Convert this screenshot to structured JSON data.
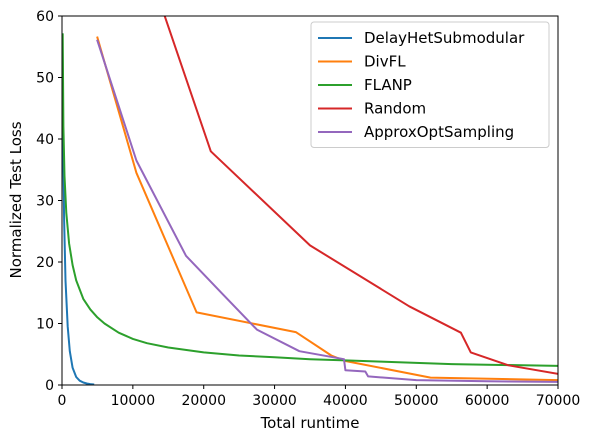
{
  "chart_data": {
    "type": "line",
    "xlabel": "Total runtime",
    "ylabel": "Normalized Test Loss",
    "xlim": [
      0,
      70000
    ],
    "ylim": [
      0,
      60
    ],
    "xticks": [
      0,
      10000,
      20000,
      30000,
      40000,
      50000,
      60000,
      70000
    ],
    "xtick_labels": [
      "0",
      "10000",
      "20000",
      "30000",
      "40000",
      "50000",
      "60000",
      "70000"
    ],
    "yticks": [
      0,
      10,
      20,
      30,
      40,
      50,
      60
    ],
    "ytick_labels": [
      "0",
      "10",
      "20",
      "30",
      "40",
      "50",
      "60"
    ],
    "grid": false,
    "legend_position": "top-right",
    "series": [
      {
        "name": "DelayHetSubmodular",
        "color": "#1f77b4",
        "points": [
          [
            50,
            57
          ],
          [
            150,
            40
          ],
          [
            300,
            27
          ],
          [
            500,
            17
          ],
          [
            800,
            9.5
          ],
          [
            1100,
            5.5
          ],
          [
            1500,
            2.8
          ],
          [
            2000,
            1.3
          ],
          [
            2500,
            0.7
          ],
          [
            3000,
            0.4
          ],
          [
            3500,
            0.25
          ],
          [
            4000,
            0.15
          ],
          [
            4400,
            0.1
          ]
        ]
      },
      {
        "name": "DivFL",
        "color": "#ff7f0e",
        "points": [
          [
            5000,
            56.5
          ],
          [
            10500,
            34.5
          ],
          [
            19000,
            11.8
          ],
          [
            33000,
            8.6
          ],
          [
            38000,
            4.8
          ],
          [
            40000,
            3.9
          ],
          [
            52000,
            1.2
          ],
          [
            70000,
            0.8
          ]
        ]
      },
      {
        "name": "FLANP",
        "color": "#2ca02c",
        "points": [
          [
            100,
            57
          ],
          [
            200,
            42
          ],
          [
            350,
            34
          ],
          [
            600,
            28
          ],
          [
            1000,
            23
          ],
          [
            1500,
            19.5
          ],
          [
            2000,
            17
          ],
          [
            3000,
            14
          ],
          [
            4000,
            12.3
          ],
          [
            5000,
            11
          ],
          [
            6000,
            10
          ],
          [
            8000,
            8.5
          ],
          [
            10000,
            7.5
          ],
          [
            12000,
            6.8
          ],
          [
            15000,
            6.1
          ],
          [
            20000,
            5.3
          ],
          [
            25000,
            4.8
          ],
          [
            30000,
            4.5
          ],
          [
            35000,
            4.2
          ],
          [
            40000,
            4.0
          ],
          [
            45000,
            3.8
          ],
          [
            50000,
            3.6
          ],
          [
            55000,
            3.4
          ],
          [
            60000,
            3.3
          ],
          [
            65000,
            3.2
          ],
          [
            70000,
            3.1
          ]
        ]
      },
      {
        "name": "Random",
        "color": "#d62728",
        "points": [
          [
            14500,
            60
          ],
          [
            21000,
            38
          ],
          [
            35000,
            22.7
          ],
          [
            49000,
            12.8
          ],
          [
            56300,
            8.5
          ],
          [
            57700,
            5.3
          ],
          [
            63000,
            3.2
          ],
          [
            70000,
            1.8
          ]
        ]
      },
      {
        "name": "ApproxOptSampling",
        "color": "#9467bd",
        "points": [
          [
            5000,
            56
          ],
          [
            10500,
            36.5
          ],
          [
            17500,
            21
          ],
          [
            22500,
            15
          ],
          [
            27500,
            9
          ],
          [
            33500,
            5.5
          ],
          [
            39800,
            4.2
          ],
          [
            40000,
            2.4
          ],
          [
            42800,
            2.2
          ],
          [
            43200,
            1.4
          ],
          [
            50000,
            0.8
          ],
          [
            60000,
            0.6
          ],
          [
            70000,
            0.5
          ]
        ]
      }
    ]
  }
}
